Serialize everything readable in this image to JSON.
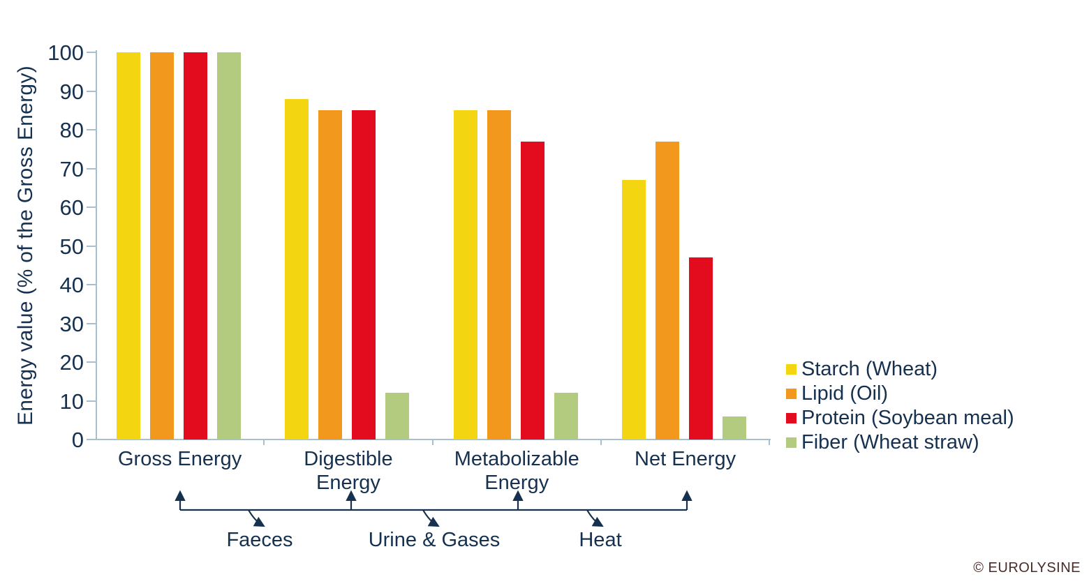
{
  "chart_data": {
    "type": "bar",
    "title": "",
    "ylabel": "Energy value (% of the Gross Energy)",
    "xlabel": "",
    "ylim": [
      0,
      100
    ],
    "ytick_step": 10,
    "grid": false,
    "legend_position": "right",
    "categories": [
      "Gross Energy",
      "Digestible Energy",
      "Metabolizable Energy",
      "Net Energy"
    ],
    "category_label_lines": [
      [
        "Gross Energy"
      ],
      [
        "Digestible",
        "Energy"
      ],
      [
        "Metabolizable",
        "Energy"
      ],
      [
        "Net Energy"
      ]
    ],
    "series": [
      {
        "name": "Starch (Wheat)",
        "color": "#F4D512",
        "values": [
          100,
          88,
          85,
          67
        ]
      },
      {
        "name": "Lipid (Oil)",
        "color": "#F2981C",
        "values": [
          100,
          85,
          85,
          77
        ]
      },
      {
        "name": "Protein (Soybean meal)",
        "color": "#E30C1F",
        "values": [
          100,
          85,
          77,
          47
        ]
      },
      {
        "name": "Fiber (Wheat straw)",
        "color": "#B2CB7E",
        "values": [
          100,
          12,
          12,
          6
        ]
      }
    ],
    "annotations": {
      "loss_labels": [
        "Faeces",
        "Urine & Gases",
        "Heat"
      ]
    }
  },
  "footer": {
    "copyright": "© EUROLYSINE"
  },
  "colors": {
    "text_navy": "#16314F",
    "axis_line": "#A8BFD0",
    "annotation_line": "#16314F",
    "copyright_text": "#4A2A28"
  }
}
